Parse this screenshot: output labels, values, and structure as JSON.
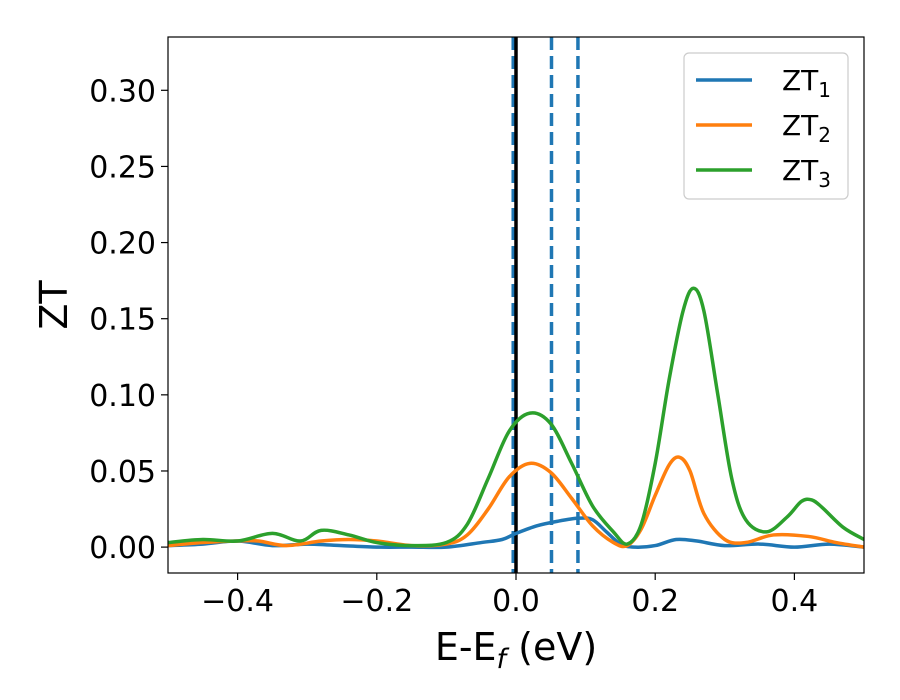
{
  "chart_data": {
    "type": "line",
    "xlabel": "E-E",
    "xlabel_subscript": "f",
    "xlabel_unit": " (eV)",
    "ylabel": "ZT",
    "xlim": [
      -0.5,
      0.5
    ],
    "ylim": [
      -0.017,
      0.335
    ],
    "xticks": [
      -0.4,
      -0.2,
      0.0,
      0.2,
      0.4
    ],
    "xtick_labels": [
      "−0.4",
      "−0.2",
      "0.0",
      "0.2",
      "0.4"
    ],
    "yticks": [
      0.0,
      0.05,
      0.1,
      0.15,
      0.2,
      0.25,
      0.3
    ],
    "ytick_labels": [
      "0.00",
      "0.05",
      "0.10",
      "0.15",
      "0.20",
      "0.25",
      "0.30"
    ],
    "grid": false,
    "legend_position": "top-right",
    "vertical_lines": [
      {
        "x": 0.0,
        "style": "solid",
        "color": "#000000"
      },
      {
        "x": -0.004,
        "style": "dashed",
        "color": "#1f77b4"
      },
      {
        "x": 0.051,
        "style": "dashed",
        "color": "#1f77b4"
      },
      {
        "x": 0.089,
        "style": "dashed",
        "color": "#1f77b4"
      }
    ],
    "series": [
      {
        "name": "ZT",
        "subscript": "1",
        "color": "#1f77b4",
        "x": [
          -0.5,
          -0.45,
          -0.4,
          -0.35,
          -0.3,
          -0.25,
          -0.2,
          -0.15,
          -0.1,
          -0.05,
          -0.02,
          0.0,
          0.03,
          0.06,
          0.09,
          0.11,
          0.13,
          0.15,
          0.17,
          0.2,
          0.23,
          0.26,
          0.3,
          0.35,
          0.4,
          0.45,
          0.5
        ],
        "values": [
          0.001,
          0.002,
          0.004,
          0.001,
          0.002,
          0.001,
          0.0,
          0.0,
          0.0,
          0.003,
          0.005,
          0.009,
          0.014,
          0.017,
          0.019,
          0.018,
          0.01,
          0.002,
          0.0,
          0.001,
          0.005,
          0.004,
          0.001,
          0.002,
          0.0,
          0.002,
          0.0
        ]
      },
      {
        "name": "ZT",
        "subscript": "2",
        "color": "#ff7f0e",
        "x": [
          -0.5,
          -0.45,
          -0.4,
          -0.37,
          -0.33,
          -0.28,
          -0.24,
          -0.2,
          -0.15,
          -0.1,
          -0.07,
          -0.04,
          -0.01,
          0.02,
          0.05,
          0.08,
          0.11,
          0.14,
          0.16,
          0.18,
          0.2,
          0.22,
          0.235,
          0.25,
          0.27,
          0.3,
          0.33,
          0.37,
          0.42,
          0.46,
          0.5
        ],
        "values": [
          0.001,
          0.003,
          0.004,
          0.004,
          0.001,
          0.004,
          0.005,
          0.004,
          0.001,
          0.002,
          0.008,
          0.025,
          0.046,
          0.055,
          0.049,
          0.032,
          0.014,
          0.003,
          0.001,
          0.012,
          0.034,
          0.054,
          0.059,
          0.05,
          0.022,
          0.005,
          0.003,
          0.008,
          0.007,
          0.003,
          0.0
        ]
      },
      {
        "name": "ZT",
        "subscript": "3",
        "color": "#2ca02c",
        "x": [
          -0.5,
          -0.45,
          -0.4,
          -0.35,
          -0.31,
          -0.28,
          -0.24,
          -0.2,
          -0.15,
          -0.1,
          -0.07,
          -0.04,
          -0.01,
          0.02,
          0.05,
          0.08,
          0.11,
          0.14,
          0.16,
          0.18,
          0.2,
          0.22,
          0.24,
          0.255,
          0.27,
          0.29,
          0.31,
          0.33,
          0.36,
          0.39,
          0.41,
          0.425,
          0.44,
          0.47,
          0.5
        ],
        "values": [
          0.003,
          0.005,
          0.004,
          0.009,
          0.004,
          0.011,
          0.008,
          0.003,
          0.001,
          0.003,
          0.015,
          0.045,
          0.076,
          0.088,
          0.081,
          0.055,
          0.027,
          0.01,
          0.002,
          0.015,
          0.055,
          0.11,
          0.155,
          0.17,
          0.155,
          0.1,
          0.045,
          0.018,
          0.01,
          0.02,
          0.03,
          0.031,
          0.026,
          0.013,
          0.005
        ]
      }
    ]
  }
}
